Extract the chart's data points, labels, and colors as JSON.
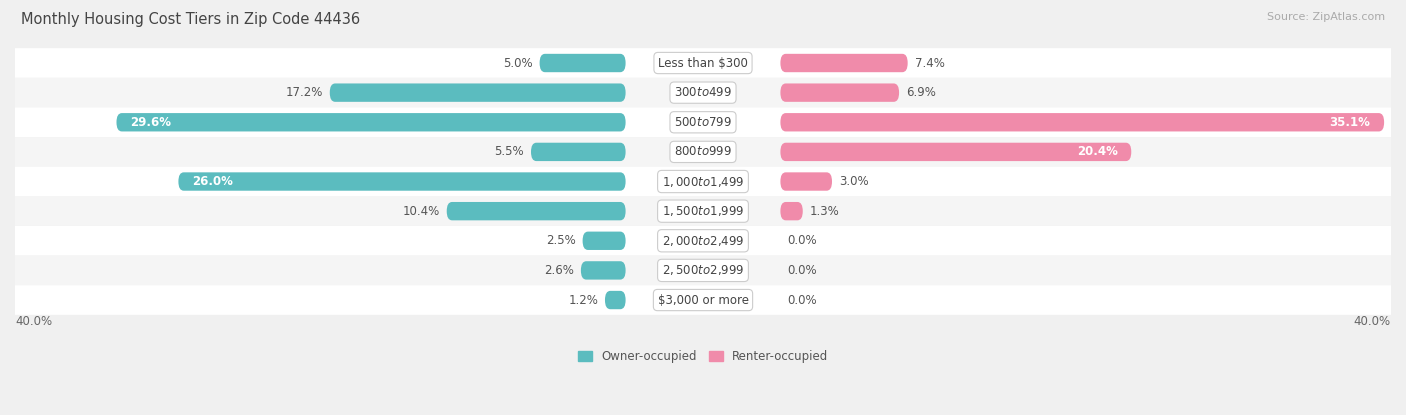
{
  "title": "Monthly Housing Cost Tiers in Zip Code 44436",
  "source": "Source: ZipAtlas.com",
  "categories": [
    "Less than $300",
    "$300 to $499",
    "$500 to $799",
    "$800 to $999",
    "$1,000 to $1,499",
    "$1,500 to $1,999",
    "$2,000 to $2,499",
    "$2,500 to $2,999",
    "$3,000 or more"
  ],
  "owner_values": [
    5.0,
    17.2,
    29.6,
    5.5,
    26.0,
    10.4,
    2.5,
    2.6,
    1.2
  ],
  "renter_values": [
    7.4,
    6.9,
    35.1,
    20.4,
    3.0,
    1.3,
    0.0,
    0.0,
    0.0
  ],
  "owner_color": "#5bbcbf",
  "renter_color": "#f08baa",
  "owner_label": "Owner-occupied",
  "renter_label": "Renter-occupied",
  "axis_max": 40.0,
  "axis_label_left": "40.0%",
  "axis_label_right": "40.0%",
  "bar_height": 0.62,
  "background_color": "#f0f0f0",
  "row_bg_color": "#ffffff",
  "row_alt_color": "#f5f5f5",
  "title_color": "#444444",
  "title_fontsize": 10.5,
  "label_fontsize": 8.5,
  "category_fontsize": 8.5,
  "source_fontsize": 8.0
}
